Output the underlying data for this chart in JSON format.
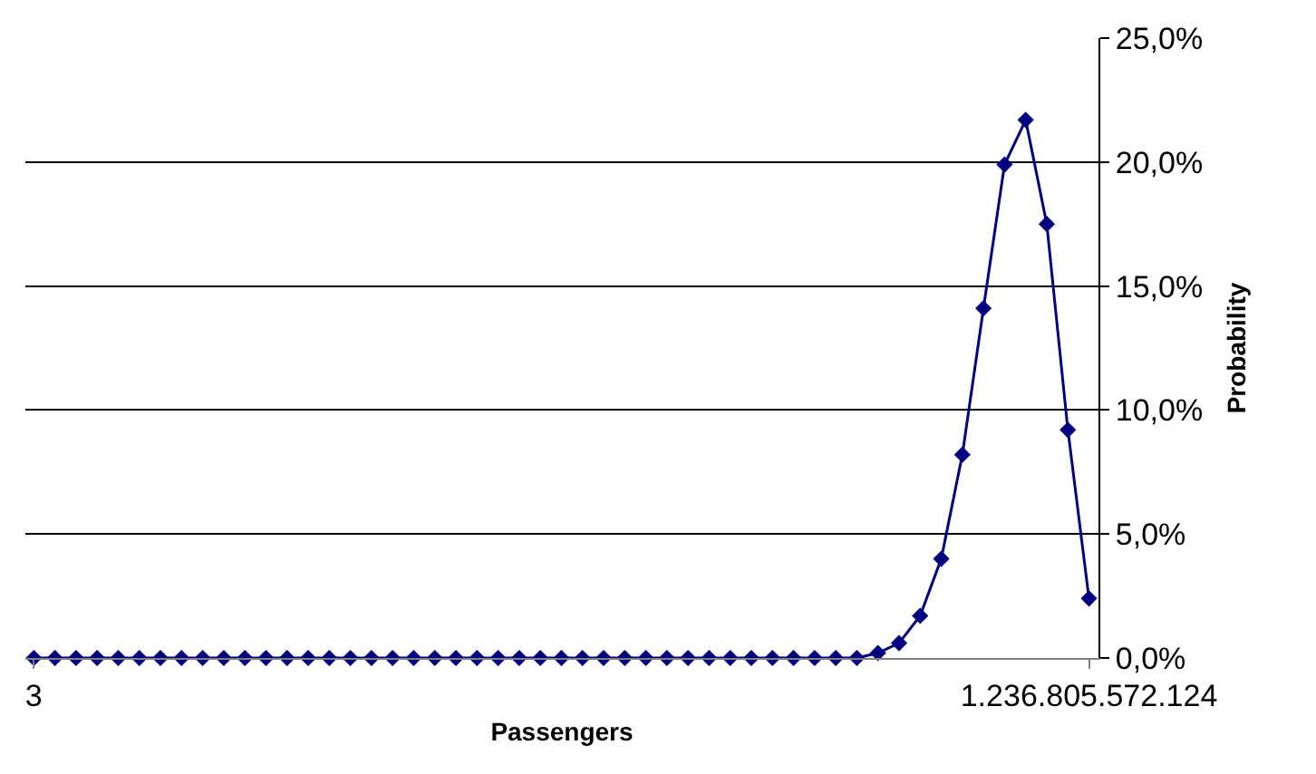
{
  "chart_data": {
    "type": "line",
    "xlabel": "Passengers",
    "ylabel": "Probability",
    "categories": [
      "3",
      null,
      null,
      null,
      null,
      null,
      null,
      null,
      null,
      null,
      null,
      null,
      null,
      null,
      null,
      null,
      null,
      null,
      null,
      null,
      null,
      null,
      null,
      null,
      null,
      null,
      null,
      null,
      null,
      null,
      null,
      null,
      null,
      null,
      null,
      null,
      null,
      null,
      null,
      null,
      null,
      null,
      null,
      null,
      null,
      null,
      null,
      null,
      null,
      null,
      "1.236.805.572.124"
    ],
    "series": [
      {
        "color": "#000080",
        "values": [
          0,
          0,
          0,
          0,
          0,
          0,
          0,
          0,
          0,
          0,
          0,
          0,
          0,
          0,
          0,
          0,
          0,
          0,
          0,
          0,
          0,
          0,
          0,
          0,
          0,
          0,
          0,
          0,
          0,
          0,
          0,
          0,
          0,
          0,
          0,
          0,
          0,
          0,
          0,
          0,
          0.2,
          0.6,
          1.7,
          4.0,
          8.2,
          14.1,
          19.9,
          21.7,
          17.5,
          9.2,
          2.4
        ]
      }
    ],
    "ylim": [
      0,
      25
    ],
    "yticks": [
      {
        "value": 0,
        "label": "0,0%"
      },
      {
        "value": 5,
        "label": "5,0%"
      },
      {
        "value": 10,
        "label": "10,0%"
      },
      {
        "value": 15,
        "label": "15,0%"
      },
      {
        "value": 20,
        "label": "20,0%"
      },
      {
        "value": 25,
        "label": "25,0%"
      }
    ],
    "grid": "y",
    "marker": "diamond",
    "line_style": "solid"
  }
}
